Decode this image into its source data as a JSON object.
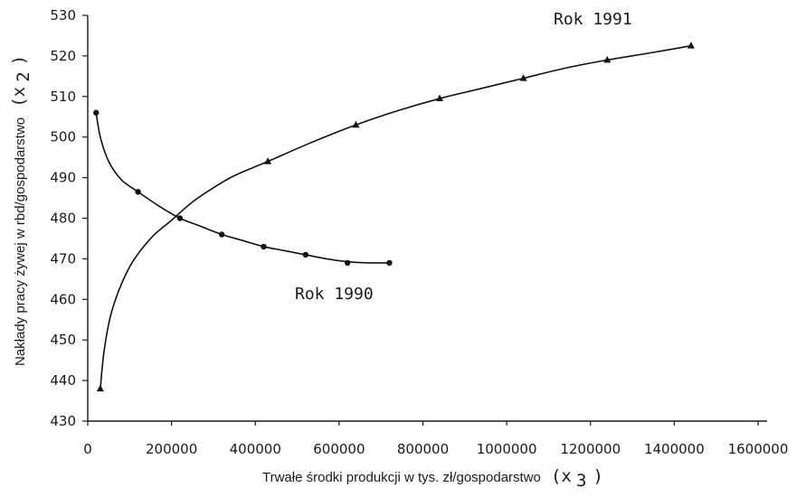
{
  "chart_data": {
    "type": "line",
    "title": "",
    "xlabel": "Trwałe środki produkcji w tys. zł/gospodarstwo",
    "xlabel_symbol": "(x",
    "xlabel_symbol_sub": "3",
    "xlabel_symbol_close": ")",
    "ylabel": "Nakłady pracy żywej w rbd/gospodarstwo",
    "ylabel_symbol": "(x",
    "ylabel_symbol_sub": "2",
    "ylabel_symbol_close": ")",
    "xlim": [
      0,
      1600000
    ],
    "ylim": [
      430,
      530
    ],
    "x_ticks": [
      0,
      200000,
      400000,
      600000,
      800000,
      1000000,
      1200000,
      1400000,
      1600000
    ],
    "x_tick_labels": [
      "0",
      "200000",
      "400000",
      "600000",
      "800000",
      "1000000",
      "1200000",
      "1400000",
      "1600000"
    ],
    "y_ticks": [
      430,
      440,
      450,
      460,
      470,
      480,
      490,
      500,
      510,
      520,
      530
    ],
    "y_tick_labels": [
      "430",
      "440",
      "450",
      "460",
      "470",
      "480",
      "490",
      "500",
      "510",
      "520",
      "530"
    ],
    "grid": false,
    "series": [
      {
        "name": "Rok 1990",
        "marker": "circle",
        "x": [
          20000,
          120000,
          220000,
          320000,
          420000,
          520000,
          620000,
          720000
        ],
        "y": [
          506,
          486.5,
          480,
          476,
          473,
          471,
          469,
          469
        ],
        "curve_x": [
          20000,
          30000,
          50000,
          80000,
          120000,
          170000,
          220000,
          270000,
          320000,
          370000,
          420000,
          470000,
          520000,
          570000,
          620000,
          670000,
          720000
        ],
        "curve_y": [
          506,
          500,
          494,
          489.5,
          486.5,
          483,
          480,
          478,
          476,
          474.5,
          473,
          472,
          471,
          470,
          469.3,
          469,
          469
        ]
      },
      {
        "name": "Rok 1991",
        "marker": "triangle",
        "x": [
          30000,
          430000,
          640000,
          840000,
          1040000,
          1240000,
          1440000
        ],
        "y": [
          438,
          494,
          503,
          509.5,
          514.5,
          519,
          522.5
        ],
        "curve_x": [
          30000,
          40000,
          60000,
          100000,
          150000,
          200000,
          250000,
          300000,
          350000,
          430000,
          530000,
          640000,
          740000,
          840000,
          940000,
          1040000,
          1140000,
          1240000,
          1340000,
          1440000
        ],
        "curve_y": [
          438,
          448,
          458,
          468,
          475,
          479.5,
          484,
          487.5,
          490.5,
          494,
          498.5,
          503,
          506.5,
          509.5,
          512,
          514.5,
          517,
          519,
          520.7,
          522.5
        ]
      }
    ]
  }
}
